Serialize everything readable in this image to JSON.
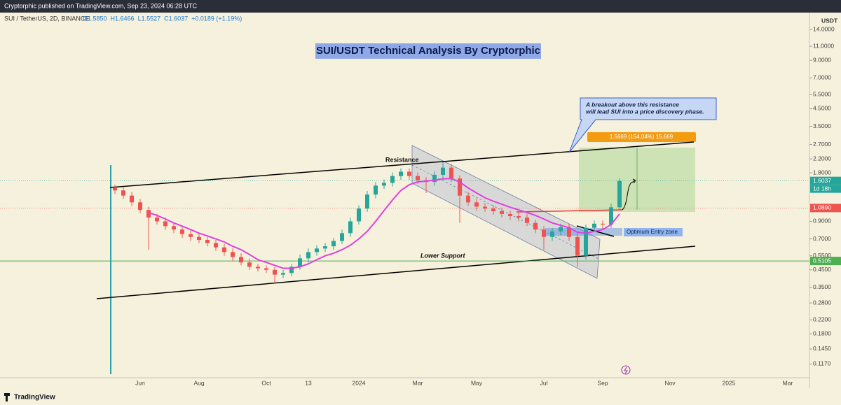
{
  "header": {
    "publisher": "Cryptorphic published on TradingView.com, Sep 23, 2024 06:28 UTC",
    "symbol": "SUI / TetherUS, 2D, BINANCE",
    "ohlc": [
      "O1.5850",
      "H1.6466",
      "L1.5527",
      "C1.6037",
      "+0.0189 (+1.19%)"
    ]
  },
  "chart_data": {
    "type": "candlestick",
    "title": "SUI/USDT Technical Analysis By Cryptorphic",
    "categories": [
      null,
      null,
      null,
      "Jun",
      null,
      null,
      null,
      null,
      null,
      null,
      "Aug",
      null,
      null,
      null,
      null,
      null,
      null,
      null,
      "Oct",
      null,
      null,
      null,
      null,
      "13",
      null,
      null,
      null,
      null,
      null,
      "2024",
      null,
      null,
      null,
      null,
      null,
      null,
      "Mar",
      null,
      null,
      null,
      null,
      null,
      null,
      "May",
      null,
      null,
      null,
      null,
      null,
      null,
      null,
      "Jul",
      null,
      null,
      null,
      null,
      null,
      null,
      "Sep",
      null,
      null,
      null,
      null,
      null,
      null,
      null,
      "Nov",
      null,
      null,
      null,
      null,
      null,
      null,
      "2025",
      null,
      null,
      null,
      null,
      null,
      null,
      "Mar",
      null
    ],
    "open": [
      1.45,
      1.4,
      1.3,
      1.18,
      1.06,
      0.95,
      0.9,
      0.84,
      0.8,
      0.75,
      0.72,
      0.69,
      0.66,
      0.62,
      0.58,
      0.54,
      0.5,
      0.47,
      0.46,
      0.45,
      0.42,
      0.43,
      0.47,
      0.53,
      0.58,
      0.61,
      0.63,
      0.68,
      0.76,
      0.9,
      1.08,
      1.32,
      1.5,
      1.56,
      1.72,
      1.83,
      1.72,
      1.62,
      1.58,
      1.75,
      1.94,
      1.66,
      1.3,
      1.18,
      1.11,
      1.08,
      1.04,
      1.0,
      0.97,
      0.95,
      0.88,
      0.8,
      0.72,
      0.78,
      0.83,
      0.72,
      0.55,
      0.82,
      0.87,
      0.86,
      1.1,
      null,
      null,
      null,
      null,
      null,
      null,
      null,
      null,
      null,
      null,
      null,
      null,
      null,
      null,
      null,
      null,
      null,
      null,
      null,
      null,
      null
    ],
    "high": [
      1.52,
      1.47,
      1.37,
      1.24,
      1.11,
      1.0,
      0.95,
      0.88,
      0.84,
      0.79,
      0.76,
      0.72,
      0.69,
      0.65,
      0.61,
      0.57,
      0.53,
      0.49,
      0.48,
      0.47,
      0.45,
      0.49,
      0.56,
      0.61,
      0.64,
      0.66,
      0.71,
      0.8,
      0.95,
      1.13,
      1.39,
      1.58,
      1.64,
      1.81,
      1.92,
      1.92,
      1.81,
      1.7,
      1.84,
      2.1,
      2.04,
      1.74,
      1.37,
      1.24,
      1.17,
      1.13,
      1.09,
      1.05,
      1.02,
      1.0,
      0.92,
      0.84,
      0.82,
      0.87,
      0.87,
      0.76,
      0.86,
      0.91,
      0.91,
      1.16,
      1.66,
      null,
      null,
      null,
      null,
      null,
      null,
      null,
      null,
      null,
      null,
      null,
      null,
      null,
      null,
      null,
      null,
      null,
      null,
      null,
      null,
      null
    ],
    "low": [
      1.33,
      1.24,
      1.12,
      1.01,
      0.6,
      0.86,
      0.8,
      0.76,
      0.71,
      0.68,
      0.66,
      0.63,
      0.59,
      0.55,
      0.51,
      0.48,
      0.45,
      0.44,
      0.43,
      0.37,
      0.4,
      0.41,
      0.45,
      0.5,
      0.55,
      0.58,
      0.6,
      0.65,
      0.72,
      0.86,
      1.03,
      1.25,
      1.43,
      1.48,
      1.63,
      1.63,
      1.54,
      1.35,
      1.5,
      1.66,
      1.58,
      0.88,
      1.12,
      1.05,
      1.03,
      0.99,
      0.95,
      0.92,
      0.9,
      0.84,
      0.76,
      0.6,
      0.68,
      0.74,
      0.68,
      0.47,
      0.52,
      0.78,
      0.8,
      0.82,
      1.05,
      null,
      null,
      null,
      null,
      null,
      null,
      null,
      null,
      null,
      null,
      null,
      null,
      null,
      null,
      null,
      null,
      null,
      null,
      null,
      null,
      null
    ],
    "close": [
      1.4,
      1.3,
      1.18,
      1.06,
      0.95,
      0.9,
      0.84,
      0.8,
      0.75,
      0.72,
      0.69,
      0.66,
      0.62,
      0.58,
      0.54,
      0.5,
      0.47,
      0.46,
      0.45,
      0.42,
      0.43,
      0.47,
      0.53,
      0.58,
      0.61,
      0.63,
      0.68,
      0.76,
      0.9,
      1.08,
      1.32,
      1.5,
      1.56,
      1.72,
      1.83,
      1.72,
      1.62,
      1.58,
      1.75,
      1.94,
      1.66,
      1.3,
      1.18,
      1.11,
      1.08,
      1.04,
      1.0,
      0.97,
      0.95,
      0.88,
      0.8,
      0.72,
      0.78,
      0.83,
      0.72,
      0.55,
      0.82,
      0.87,
      0.86,
      1.1,
      1.6037,
      null,
      null,
      null,
      null,
      null,
      null,
      null,
      null,
      null,
      null,
      null,
      null,
      null,
      null,
      null,
      null,
      null,
      null,
      null,
      null,
      null
    ],
    "up_color": "#26a69a",
    "down_color": "#ef5350",
    "overlay": {
      "type": "line",
      "color": "#e040e0",
      "values": [
        null,
        null,
        null,
        null,
        1.02,
        0.98,
        0.93,
        0.88,
        0.84,
        0.8,
        0.76,
        0.73,
        0.7,
        0.67,
        0.63,
        0.6,
        0.56,
        0.52,
        0.5,
        0.48,
        0.46,
        0.46,
        0.47,
        0.49,
        0.52,
        0.55,
        0.57,
        0.6,
        0.64,
        0.7,
        0.78,
        0.9,
        1.05,
        1.22,
        1.4,
        1.52,
        1.58,
        1.6,
        1.62,
        1.65,
        1.66,
        1.58,
        1.45,
        1.35,
        1.26,
        1.2,
        1.15,
        1.1,
        1.06,
        1.02,
        0.98,
        0.93,
        0.88,
        0.85,
        0.82,
        0.77,
        0.76,
        0.78,
        0.8,
        0.86,
        1.0,
        null,
        null,
        null,
        null,
        null,
        null,
        null,
        null,
        null,
        null,
        null,
        null,
        null,
        null,
        null,
        null,
        null,
        null,
        null,
        null,
        null
      ]
    },
    "log_scale": true,
    "grid": false,
    "axis_unit": "USDT",
    "ylim": [
      0.0962,
      17.1
    ],
    "yticks": [
      {
        "value": 14,
        "label": "14.0000"
      },
      {
        "value": 11,
        "label": "11.0000"
      },
      {
        "value": 9,
        "label": "9.0000"
      },
      {
        "value": 7,
        "label": "7.0000"
      },
      {
        "value": 5.5,
        "label": "5.5000"
      },
      {
        "value": 4.5,
        "label": "4.5000"
      },
      {
        "value": 3.5,
        "label": "3.5000"
      },
      {
        "value": 2.7,
        "label": "2.7000"
      },
      {
        "value": 2.2,
        "label": "2.2000"
      },
      {
        "value": 1.8,
        "label": "1.8000"
      },
      {
        "value": 0.9,
        "label": "0.9000"
      },
      {
        "value": 0.7,
        "label": "0.7000"
      },
      {
        "value": 0.55,
        "label": "0.5500"
      },
      {
        "value": 0.45,
        "label": "0.4500"
      },
      {
        "value": 0.35,
        "label": "0.3500"
      },
      {
        "value": 0.28,
        "label": "0.2800"
      },
      {
        "value": 0.22,
        "label": "0.2200"
      },
      {
        "value": 0.18,
        "label": "0.1800"
      },
      {
        "value": 0.145,
        "label": "0.1450"
      },
      {
        "value": 0.117,
        "label": "0.1170"
      }
    ],
    "price_labels": [
      {
        "value": 1.6037,
        "label": "1.6037",
        "color": "#26a69a"
      },
      {
        "value": 1.089,
        "label": "1.0890",
        "color": "#ef5350"
      },
      {
        "value": 0.5105,
        "label": "0.5105",
        "color": "#4caf50"
      }
    ],
    "countdown": "1d 18h",
    "annotations": {
      "resistance": "Resistance",
      "support": "Lower Support",
      "entry": "Optimum Entry zone",
      "callout": [
        "A breakout above this resistance",
        "will lead SUI into a price discovery phase."
      ],
      "target": "1.5669 (154.04%) 15,669"
    }
  },
  "footer": {
    "brand": "TradingView"
  }
}
